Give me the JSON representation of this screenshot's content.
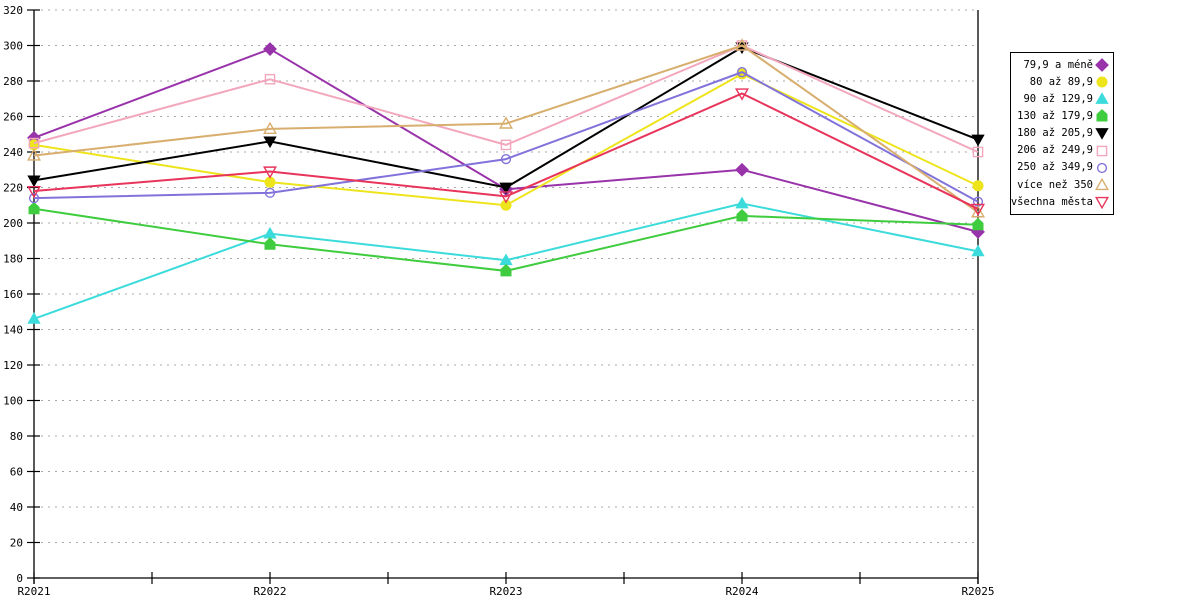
{
  "chart_data": {
    "type": "line",
    "categories": [
      "R2021",
      "R2022",
      "R2023",
      "R2024",
      "R2025"
    ],
    "series": [
      {
        "name": "79,9 a méně",
        "color": "#9933AA",
        "marker": "diamond",
        "open": false,
        "values": [
          248,
          298,
          219,
          230,
          195
        ]
      },
      {
        "name": "80 až 89,9",
        "color": "#EDE41C",
        "marker": "circle",
        "open": false,
        "values": [
          244,
          223,
          210,
          284,
          221
        ]
      },
      {
        "name": "90 až 129,9",
        "color": "#3CDBDB",
        "marker": "triangle-up",
        "open": false,
        "values": [
          146,
          194,
          179,
          211,
          184
        ]
      },
      {
        "name": "130 až 179,9",
        "color": "#3FCC3F",
        "marker": "pentagon",
        "open": false,
        "values": [
          208,
          188,
          173,
          204,
          199
        ]
      },
      {
        "name": "180 až 205,9",
        "color": "#000000",
        "marker": "triangle-down",
        "open": false,
        "values": [
          224,
          246,
          220,
          299,
          247
        ]
      },
      {
        "name": "206 až 249,9",
        "color": "#F2A7BD",
        "marker": "square",
        "open": true,
        "values": [
          245,
          281,
          244,
          300,
          240
        ]
      },
      {
        "name": "250 až 349,9",
        "color": "#8273DB",
        "marker": "circle",
        "open": true,
        "values": [
          214,
          217,
          236,
          285,
          212
        ]
      },
      {
        "name": "více než 350",
        "color": "#D8AE6E",
        "marker": "triangle-up",
        "open": true,
        "values": [
          238,
          253,
          256,
          300,
          206
        ]
      },
      {
        "name": "všechna města",
        "color": "#E8345A",
        "marker": "triangle-down",
        "open": true,
        "values": [
          218,
          229,
          215,
          273,
          208
        ]
      }
    ],
    "title": "",
    "xlabel": "",
    "ylabel": "",
    "ylim": [
      0,
      320
    ],
    "ytick_step": 20,
    "yticks": [
      0,
      20,
      40,
      60,
      80,
      100,
      120,
      140,
      160,
      180,
      200,
      220,
      240,
      260,
      280,
      300,
      320
    ],
    "x_minor_ticks_per_interval": 2,
    "grid": "dashed-horizontal",
    "grid_color": "#A8A8A8",
    "axis_color": "#000000",
    "legend_position": "right"
  }
}
